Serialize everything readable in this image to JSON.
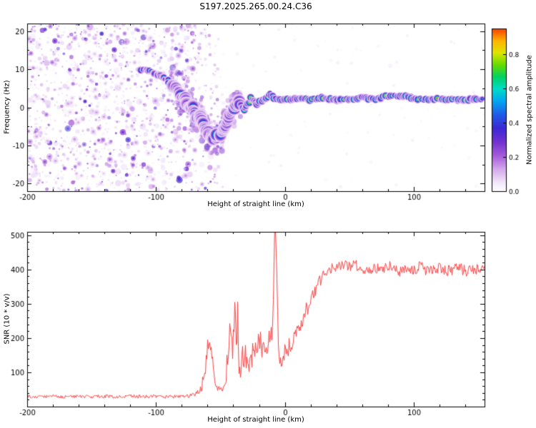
{
  "title": "S197.2025.265.00.24.C36",
  "chart_data": [
    {
      "type": "heatmap",
      "xlabel": "Height of straight line (km)",
      "ylabel": "Frequency (Hz)",
      "xlim": [
        -200,
        155
      ],
      "ylim": [
        -22,
        22
      ],
      "xticks": [
        -200,
        -100,
        0,
        100
      ],
      "xminor": 20,
      "yticks": [
        -20,
        -10,
        0,
        10,
        20
      ],
      "yminor": 5,
      "colorbar": {
        "label": "Normalized spectral amplitude",
        "ticks": [
          0.0,
          0.2,
          0.4,
          0.6,
          0.8
        ],
        "range": [
          0,
          0.95
        ]
      },
      "colormap": [
        [
          0.0,
          "#ffffff"
        ],
        [
          0.05,
          "#f3e8fa"
        ],
        [
          0.13,
          "#d4a9ea"
        ],
        [
          0.21,
          "#a55ada"
        ],
        [
          0.29,
          "#7132ce"
        ],
        [
          0.37,
          "#3c28d6"
        ],
        [
          0.45,
          "#1e5ce8"
        ],
        [
          0.53,
          "#00a8f0"
        ],
        [
          0.6,
          "#00dcc8"
        ],
        [
          0.67,
          "#00d262"
        ],
        [
          0.74,
          "#66dc00"
        ],
        [
          0.81,
          "#dce600"
        ],
        [
          0.88,
          "#ffb400"
        ],
        [
          0.94,
          "#ff5000"
        ],
        [
          1.0,
          "#d80028"
        ]
      ],
      "noise": {
        "x_range": [
          -200,
          -48
        ],
        "density": 1600
      },
      "ridge": [
        [
          -113,
          10,
          0.6
        ],
        [
          -109,
          10,
          0.65
        ],
        [
          -105,
          9.5,
          0.6
        ],
        [
          -101,
          9,
          0.6
        ],
        [
          -97,
          8.5,
          0.55
        ],
        [
          -93,
          7.5,
          0.6
        ],
        [
          -89,
          6.5,
          0.6
        ],
        [
          -86,
          5.5,
          0.6
        ],
        [
          -83,
          4,
          0.65
        ],
        [
          -80,
          2.5,
          0.7
        ],
        [
          -78,
          3,
          0.6
        ],
        [
          -76,
          1,
          0.65
        ],
        [
          -74,
          -0.5,
          0.7
        ],
        [
          -72,
          0.5,
          0.6
        ],
        [
          -70,
          -1.5,
          0.7
        ],
        [
          -68,
          -3,
          0.7
        ],
        [
          -66,
          -2,
          0.65
        ],
        [
          -64,
          -4,
          0.7
        ],
        [
          -62,
          -5.5,
          0.7
        ],
        [
          -60,
          -6.5,
          0.75
        ],
        [
          -58,
          -7.5,
          0.7
        ],
        [
          -56,
          -8,
          0.75
        ],
        [
          -54,
          -8.5,
          0.75
        ],
        [
          -52,
          -7,
          0.7
        ],
        [
          -50,
          -7.5,
          0.75
        ],
        [
          -48,
          -6,
          0.7
        ],
        [
          -46,
          -4.5,
          0.75
        ],
        [
          -44,
          -3,
          0.7
        ],
        [
          -42,
          -1.5,
          0.75
        ],
        [
          -40,
          -0.5,
          0.8
        ],
        [
          -38,
          0.5,
          0.75
        ],
        [
          -36,
          1.5,
          0.8
        ],
        [
          -34,
          0.5,
          0.75
        ],
        [
          -32,
          -0.5,
          0.75
        ],
        [
          -30,
          0.5,
          0.8
        ],
        [
          -28,
          1.5,
          0.85
        ],
        [
          -26,
          2.5,
          0.85
        ],
        [
          -24,
          2,
          0.85
        ],
        [
          -22,
          1,
          0.85
        ],
        [
          -20,
          1.5,
          0.9
        ],
        [
          -17,
          2,
          0.9
        ],
        [
          -14,
          2.5,
          0.9
        ],
        [
          -11,
          3.5,
          0.9
        ],
        [
          -8,
          2.5,
          0.95
        ],
        [
          -5,
          2,
          0.95
        ],
        [
          -2,
          2,
          0.95
        ],
        [
          0,
          2,
          0.95
        ],
        [
          5,
          2.2,
          0.9
        ],
        [
          10,
          2,
          0.95
        ],
        [
          15,
          2.2,
          0.9
        ],
        [
          20,
          2,
          0.95
        ],
        [
          25,
          2.3,
          0.9
        ],
        [
          30,
          2.5,
          0.95
        ],
        [
          35,
          2.2,
          0.9
        ],
        [
          40,
          2,
          0.95
        ],
        [
          45,
          2.2,
          0.9
        ],
        [
          50,
          2,
          0.95
        ],
        [
          55,
          2.3,
          0.9
        ],
        [
          60,
          2.5,
          0.9
        ],
        [
          65,
          2.2,
          0.95
        ],
        [
          70,
          2,
          0.9
        ],
        [
          75,
          2.5,
          0.95
        ],
        [
          80,
          3,
          0.95
        ],
        [
          85,
          3.3,
          1.0
        ],
        [
          90,
          3,
          1.0
        ],
        [
          95,
          2.7,
          0.95
        ],
        [
          100,
          2.5,
          0.95
        ],
        [
          105,
          2.2,
          0.9
        ],
        [
          110,
          2,
          0.95
        ],
        [
          115,
          2,
          0.9
        ],
        [
          120,
          2.2,
          0.95
        ],
        [
          125,
          2,
          0.9
        ],
        [
          130,
          2.2,
          0.9
        ],
        [
          135,
          2,
          0.95
        ],
        [
          140,
          2,
          0.9
        ],
        [
          145,
          2.2,
          0.9
        ],
        [
          150,
          2,
          0.9
        ],
        [
          155,
          2,
          0.85
        ]
      ],
      "ridge2": [
        [
          -80,
          4.5,
          0.45
        ],
        [
          -75,
          3,
          0.4
        ],
        [
          -70,
          1.5,
          0.4
        ],
        [
          -66,
          0.5,
          0.35
        ]
      ]
    },
    {
      "type": "line",
      "xlabel": "Height of straight line (km)",
      "ylabel": "SNR (10 * v/v)",
      "xlim": [
        -200,
        155
      ],
      "ylim": [
        0,
        510
      ],
      "xticks": [
        -200,
        -100,
        0,
        100
      ],
      "xminor": 20,
      "yticks": [
        100,
        200,
        300,
        400,
        500
      ],
      "yminor": 20,
      "series": [
        {
          "name": "SNR",
          "color": "#fb4040",
          "points": [
            [
              -200,
              30,
              10
            ],
            [
              -190,
              29,
              9
            ],
            [
              -180,
              30,
              10
            ],
            [
              -170,
              28,
              9
            ],
            [
              -160,
              30,
              10
            ],
            [
              -150,
              29,
              9
            ],
            [
              -140,
              30,
              10
            ],
            [
              -130,
              28,
              9
            ],
            [
              -120,
              30,
              10
            ],
            [
              -110,
              29,
              9
            ],
            [
              -100,
              30,
              10
            ],
            [
              -95,
              28,
              9
            ],
            [
              -90,
              30,
              10
            ],
            [
              -85,
              29,
              10
            ],
            [
              -80,
              30,
              10
            ],
            [
              -76,
              31,
              10
            ],
            [
              -72,
              33,
              12
            ],
            [
              -68,
              40,
              16
            ],
            [
              -65,
              55,
              25
            ],
            [
              -62,
              110,
              50
            ],
            [
              -60,
              190,
              45
            ],
            [
              -58,
              185,
              50
            ],
            [
              -56,
              120,
              45
            ],
            [
              -54,
              70,
              25
            ],
            [
              -52,
              52,
              18
            ],
            [
              -50,
              48,
              15
            ],
            [
              -48,
              55,
              20
            ],
            [
              -46,
              80,
              40
            ],
            [
              -44,
              190,
              90
            ],
            [
              -42,
              250,
              70
            ],
            [
              -41,
              140,
              60
            ],
            [
              -40,
              240,
              90
            ],
            [
              -39,
              300,
              60
            ],
            [
              -38,
              160,
              70
            ],
            [
              -37,
              280,
              80
            ],
            [
              -36,
              130,
              60
            ],
            [
              -35,
              95,
              45
            ],
            [
              -34,
              110,
              50
            ],
            [
              -33,
              150,
              60
            ],
            [
              -32,
              120,
              50
            ],
            [
              -31,
              160,
              60
            ],
            [
              -30,
              120,
              45
            ],
            [
              -29,
              140,
              55
            ],
            [
              -28,
              110,
              45
            ],
            [
              -27,
              150,
              60
            ],
            [
              -26,
              120,
              50
            ],
            [
              -25,
              170,
              65
            ],
            [
              -24,
              140,
              55
            ],
            [
              -23,
              180,
              65
            ],
            [
              -22,
              150,
              55
            ],
            [
              -21,
              190,
              70
            ],
            [
              -20,
              160,
              60
            ],
            [
              -19,
              200,
              70
            ],
            [
              -18,
              170,
              60
            ],
            [
              -16,
              190,
              65
            ],
            [
              -14,
              180,
              60
            ],
            [
              -12,
              200,
              70
            ],
            [
              -10,
              240,
              90
            ],
            [
              -9,
              380,
              120
            ],
            [
              -8,
              520,
              60
            ],
            [
              -7,
              430,
              120
            ],
            [
              -6,
              250,
              90
            ],
            [
              -5,
              180,
              70
            ],
            [
              -4,
              140,
              50
            ],
            [
              -3,
              130,
              45
            ],
            [
              -2,
              145,
              50
            ],
            [
              0,
              160,
              50
            ],
            [
              3,
              175,
              50
            ],
            [
              6,
              195,
              50
            ],
            [
              10,
              225,
              55
            ],
            [
              14,
              255,
              50
            ],
            [
              18,
              295,
              50
            ],
            [
              22,
              330,
              45
            ],
            [
              26,
              360,
              40
            ],
            [
              30,
              385,
              35
            ],
            [
              34,
              398,
              32
            ],
            [
              38,
              408,
              32
            ],
            [
              42,
              415,
              34
            ],
            [
              46,
              420,
              35
            ],
            [
              50,
              408,
              32
            ],
            [
              55,
              415,
              34
            ],
            [
              60,
              402,
              30
            ],
            [
              65,
              396,
              32
            ],
            [
              70,
              406,
              34
            ],
            [
              75,
              399,
              30
            ],
            [
              80,
              410,
              34
            ],
            [
              85,
              401,
              30
            ],
            [
              90,
              394,
              34
            ],
            [
              95,
              406,
              30
            ],
            [
              100,
              400,
              34
            ],
            [
              105,
              410,
              30
            ],
            [
              110,
              394,
              34
            ],
            [
              115,
              400,
              30
            ],
            [
              120,
              406,
              34
            ],
            [
              125,
              394,
              30
            ],
            [
              130,
              401,
              34
            ],
            [
              135,
              407,
              30
            ],
            [
              140,
              394,
              34
            ],
            [
              145,
              401,
              30
            ],
            [
              150,
              400,
              32
            ],
            [
              155,
              398,
              30
            ]
          ]
        }
      ]
    }
  ]
}
